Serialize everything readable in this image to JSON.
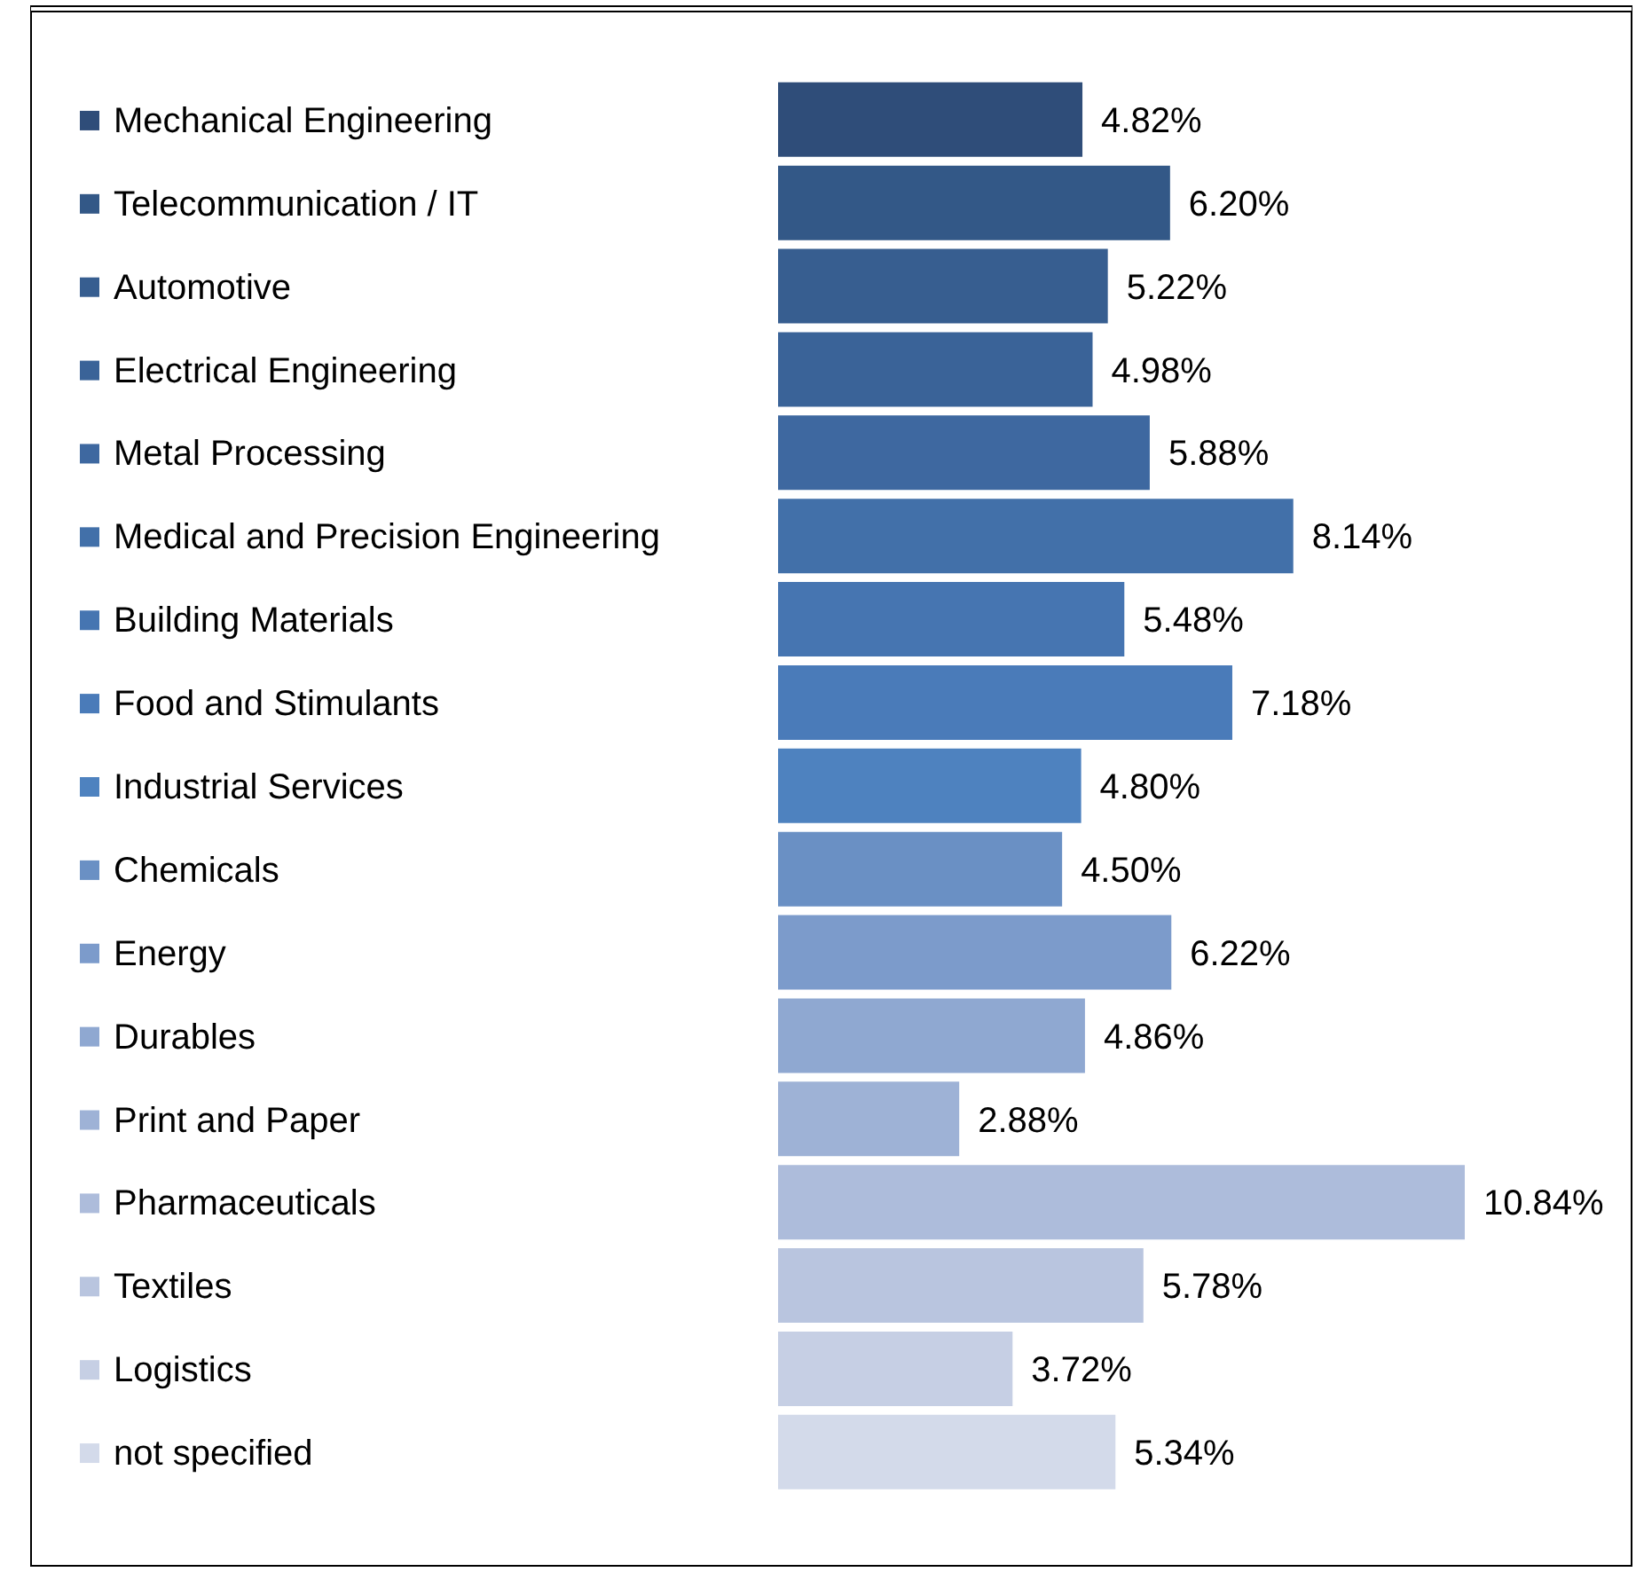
{
  "chart_data": {
    "type": "bar",
    "orientation": "horizontal",
    "categories": [
      "Mechanical Engineering",
      "Telecommunication / IT",
      "Automotive",
      "Electrical Engineering",
      "Metal Processing",
      "Medical and Precision Engineering",
      "Building Materials",
      "Food and Stimulants",
      "Industrial Services",
      "Chemicals",
      "Energy",
      "Durables",
      "Print and Paper",
      "Pharmaceuticals",
      "Textiles",
      "Logistics",
      "not specified"
    ],
    "values": [
      4.82,
      6.2,
      5.22,
      4.98,
      5.88,
      8.14,
      5.48,
      7.18,
      4.8,
      4.5,
      6.22,
      4.86,
      2.88,
      10.84,
      5.78,
      3.72,
      5.34
    ],
    "value_labels": [
      "4.82%",
      "6.20%",
      "5.22%",
      "4.98%",
      "5.88%",
      "8.14%",
      "5.48%",
      "7.18%",
      "4.80%",
      "4.50%",
      "6.22%",
      "4.86%",
      "2.88%",
      "10.84%",
      "5.78%",
      "3.72%",
      "5.34%"
    ],
    "colors": [
      "#2f4d79",
      "#335887",
      "#375e90",
      "#3a6398",
      "#3e68a0",
      "#4270a9",
      "#4675b1",
      "#4a7bb9",
      "#4e82bf",
      "#6a90c4",
      "#7c9bcb",
      "#8fa8d1",
      "#9eb2d6",
      "#adbcdb",
      "#b9c5df",
      "#c6cfe4",
      "#d3daea"
    ]
  }
}
